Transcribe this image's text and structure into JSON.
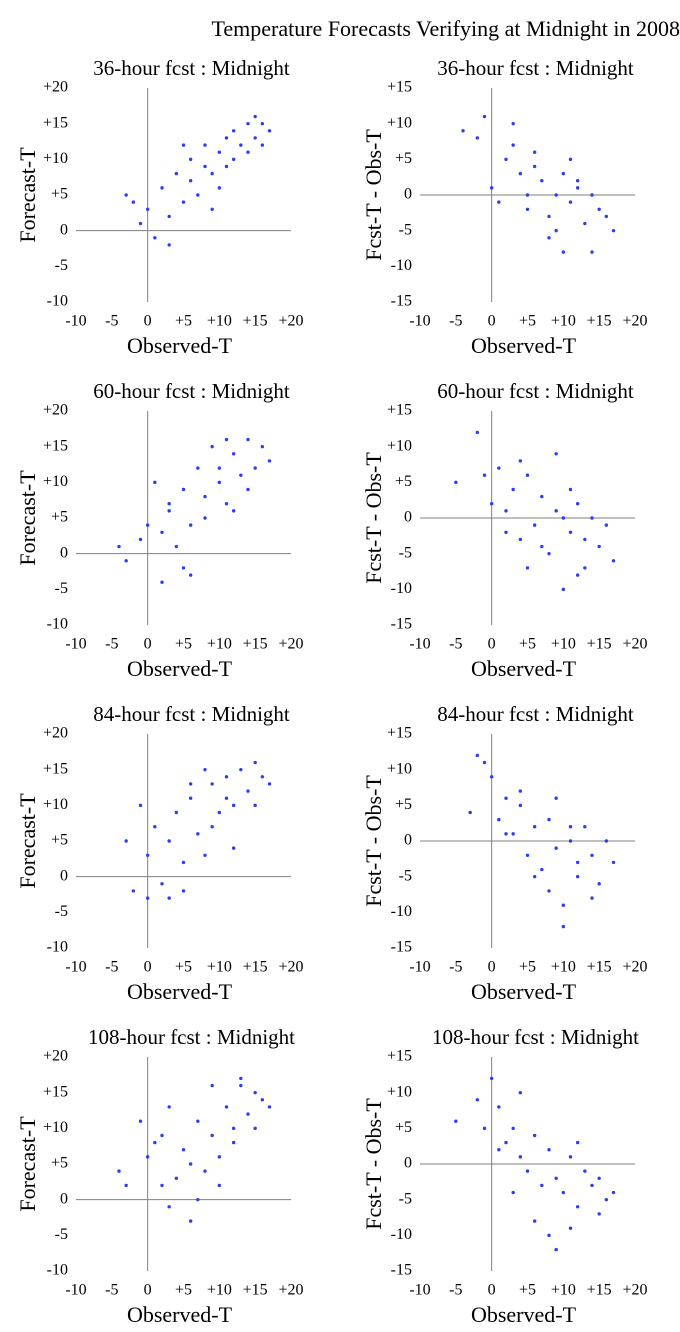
{
  "title": "Temperature Forecasts Verifying at Midnight in 2008",
  "chart_data": [
    {
      "type": "scatter",
      "title": "36-hour fcst : Midnight",
      "x_label": "Observed-T",
      "y_label": "Forecast-T",
      "color": "#2b3cf5",
      "xlim": [
        -10,
        20
      ],
      "xticks": [
        -10,
        -5,
        0,
        {
          "value": 5,
          "label": "+5"
        },
        {
          "value": 10,
          "label": "+10"
        },
        {
          "value": 15,
          "label": "+15"
        },
        {
          "value": 20,
          "label": "+20"
        }
      ],
      "ylim": [
        -10,
        20
      ],
      "yticks": [
        -10,
        -5,
        0,
        {
          "value": 5,
          "label": "+5"
        },
        {
          "value": 10,
          "label": "+10"
        },
        {
          "value": 15,
          "label": "+15"
        },
        {
          "value": 20,
          "label": "+20"
        }
      ],
      "x": [
        -3,
        -2,
        -1,
        0,
        1,
        2,
        3,
        4,
        5,
        6,
        6,
        7,
        8,
        8,
        9,
        10,
        10,
        11,
        12,
        12,
        13,
        14,
        14,
        15,
        15,
        16,
        16,
        17,
        3,
        9,
        11,
        5
      ],
      "values": [
        5,
        4,
        1,
        3,
        -1,
        6,
        2,
        8,
        4,
        10,
        7,
        5,
        9,
        12,
        8,
        11,
        6,
        13,
        10,
        14,
        12,
        11,
        15,
        13,
        16,
        12,
        15,
        14,
        -2,
        3,
        9,
        12
      ]
    },
    {
      "type": "scatter",
      "title": "36-hour fcst : Midnight",
      "x_label": "Observed-T",
      "y_label": "Fcst-T - Obs-T",
      "color": "#2b3cf5",
      "xlim": [
        -10,
        20
      ],
      "xticks": [
        -10,
        -5,
        0,
        {
          "value": 5,
          "label": "+5"
        },
        {
          "value": 10,
          "label": "+10"
        },
        {
          "value": 15,
          "label": "+15"
        },
        {
          "value": 20,
          "label": "+20"
        }
      ],
      "ylim": [
        -15,
        15
      ],
      "yticks": [
        -15,
        -10,
        -5,
        0,
        {
          "value": 5,
          "label": "+5"
        },
        {
          "value": 10,
          "label": "+10"
        },
        {
          "value": 15,
          "label": "+15"
        }
      ],
      "x": [
        -4,
        -2,
        -1,
        0,
        1,
        2,
        3,
        4,
        5,
        6,
        7,
        8,
        9,
        10,
        10,
        11,
        12,
        13,
        14,
        15,
        16,
        17,
        3,
        6,
        9,
        12,
        8,
        5,
        14,
        11
      ],
      "values": [
        9,
        8,
        11,
        1,
        -1,
        5,
        10,
        3,
        -2,
        6,
        2,
        -3,
        0,
        -8,
        3,
        -1,
        1,
        -4,
        0,
        -2,
        -3,
        -5,
        7,
        4,
        -5,
        2,
        -6,
        0,
        -8,
        5
      ]
    },
    {
      "type": "scatter",
      "title": "60-hour fcst : Midnight",
      "x_label": "Observed-T",
      "y_label": "Forecast-T",
      "color": "#2b3cf5",
      "xlim": [
        -10,
        20
      ],
      "xticks": [
        -10,
        -5,
        0,
        {
          "value": 5,
          "label": "+5"
        },
        {
          "value": 10,
          "label": "+10"
        },
        {
          "value": 15,
          "label": "+15"
        },
        {
          "value": 20,
          "label": "+20"
        }
      ],
      "ylim": [
        -10,
        20
      ],
      "yticks": [
        -10,
        -5,
        0,
        {
          "value": 5,
          "label": "+5"
        },
        {
          "value": 10,
          "label": "+10"
        },
        {
          "value": 15,
          "label": "+15"
        },
        {
          "value": 20,
          "label": "+20"
        }
      ],
      "x": [
        -4,
        -3,
        -1,
        0,
        1,
        2,
        3,
        4,
        5,
        6,
        7,
        8,
        9,
        10,
        11,
        12,
        13,
        14,
        15,
        16,
        17,
        2,
        5,
        8,
        11,
        14,
        6,
        10,
        3,
        12
      ],
      "values": [
        1,
        -1,
        2,
        4,
        10,
        3,
        6,
        1,
        9,
        4,
        12,
        8,
        15,
        10,
        7,
        14,
        11,
        16,
        12,
        15,
        13,
        -4,
        -2,
        5,
        16,
        9,
        -3,
        12,
        7,
        6
      ]
    },
    {
      "type": "scatter",
      "title": "60-hour fcst : Midnight",
      "x_label": "Observed-T",
      "y_label": "Fcst-T - Obs-T",
      "color": "#2b3cf5",
      "xlim": [
        -10,
        20
      ],
      "xticks": [
        -10,
        -5,
        0,
        {
          "value": 5,
          "label": "+5"
        },
        {
          "value": 10,
          "label": "+10"
        },
        {
          "value": 15,
          "label": "+15"
        },
        {
          "value": 20,
          "label": "+20"
        }
      ],
      "ylim": [
        -15,
        15
      ],
      "yticks": [
        -15,
        -10,
        -5,
        0,
        {
          "value": 5,
          "label": "+5"
        },
        {
          "value": 10,
          "label": "+10"
        },
        {
          "value": 15,
          "label": "+15"
        }
      ],
      "x": [
        -5,
        -2,
        -1,
        0,
        1,
        2,
        3,
        4,
        5,
        6,
        7,
        8,
        9,
        10,
        11,
        12,
        13,
        14,
        15,
        16,
        17,
        4,
        7,
        10,
        13,
        2,
        9,
        12,
        5,
        11
      ],
      "values": [
        5,
        12,
        6,
        2,
        7,
        1,
        4,
        -3,
        6,
        -1,
        3,
        -5,
        1,
        -10,
        -2,
        2,
        -7,
        0,
        -4,
        -1,
        -6,
        8,
        -4,
        0,
        -3,
        -2,
        9,
        -8,
        -7,
        4
      ]
    },
    {
      "type": "scatter",
      "title": "84-hour fcst : Midnight",
      "x_label": "Observed-T",
      "y_label": "Forecast-T",
      "color": "#2b3cf5",
      "xlim": [
        -10,
        20
      ],
      "xticks": [
        -10,
        -5,
        0,
        {
          "value": 5,
          "label": "+5"
        },
        {
          "value": 10,
          "label": "+10"
        },
        {
          "value": 15,
          "label": "+15"
        },
        {
          "value": 20,
          "label": "+20"
        }
      ],
      "ylim": [
        -10,
        20
      ],
      "yticks": [
        -10,
        -5,
        0,
        {
          "value": 5,
          "label": "+5"
        },
        {
          "value": 10,
          "label": "+10"
        },
        {
          "value": 15,
          "label": "+15"
        },
        {
          "value": 20,
          "label": "+20"
        }
      ],
      "x": [
        -3,
        -2,
        -1,
        0,
        1,
        2,
        3,
        4,
        5,
        6,
        7,
        8,
        9,
        10,
        11,
        12,
        13,
        14,
        15,
        16,
        17,
        3,
        6,
        9,
        12,
        0,
        15,
        8,
        5,
        11
      ],
      "values": [
        5,
        -2,
        10,
        3,
        7,
        -1,
        5,
        9,
        2,
        11,
        6,
        3,
        13,
        9,
        14,
        10,
        15,
        12,
        16,
        14,
        13,
        -3,
        13,
        7,
        4,
        -3,
        10,
        15,
        -2,
        11
      ]
    },
    {
      "type": "scatter",
      "title": "84-hour fcst : Midnight",
      "x_label": "Observed-T",
      "y_label": "Fcst-T - Obs-T",
      "color": "#2b3cf5",
      "xlim": [
        -10,
        20
      ],
      "xticks": [
        -10,
        -5,
        0,
        {
          "value": 5,
          "label": "+5"
        },
        {
          "value": 10,
          "label": "+10"
        },
        {
          "value": 15,
          "label": "+15"
        },
        {
          "value": 20,
          "label": "+20"
        }
      ],
      "ylim": [
        -15,
        15
      ],
      "yticks": [
        -15,
        -10,
        -5,
        0,
        {
          "value": 5,
          "label": "+5"
        },
        {
          "value": 10,
          "label": "+10"
        },
        {
          "value": 15,
          "label": "+15"
        }
      ],
      "x": [
        -3,
        -2,
        -1,
        0,
        1,
        2,
        3,
        4,
        5,
        6,
        7,
        8,
        9,
        10,
        11,
        12,
        13,
        14,
        15,
        16,
        17,
        4,
        8,
        10,
        12,
        6,
        2,
        9,
        14,
        11
      ],
      "values": [
        4,
        12,
        11,
        9,
        3,
        6,
        1,
        5,
        -2,
        2,
        -4,
        3,
        -1,
        -9,
        0,
        -5,
        2,
        -2,
        -6,
        0,
        -3,
        7,
        -7,
        -12,
        -3,
        -5,
        1,
        6,
        -8,
        2
      ]
    },
    {
      "type": "scatter",
      "title": "108-hour fcst : Midnight",
      "x_label": "Observed-T",
      "y_label": "Forecast-T",
      "color": "#2b3cf5",
      "xlim": [
        -10,
        20
      ],
      "xticks": [
        -10,
        -5,
        0,
        {
          "value": 5,
          "label": "+5"
        },
        {
          "value": 10,
          "label": "+10"
        },
        {
          "value": 15,
          "label": "+15"
        },
        {
          "value": 20,
          "label": "+20"
        }
      ],
      "ylim": [
        -10,
        20
      ],
      "yticks": [
        -10,
        -5,
        0,
        {
          "value": 5,
          "label": "+5"
        },
        {
          "value": 10,
          "label": "+10"
        },
        {
          "value": 15,
          "label": "+15"
        },
        {
          "value": 20,
          "label": "+20"
        }
      ],
      "x": [
        -4,
        -3,
        -1,
        0,
        1,
        2,
        3,
        4,
        5,
        6,
        7,
        8,
        9,
        10,
        11,
        12,
        13,
        14,
        15,
        16,
        17,
        3,
        6,
        9,
        12,
        15,
        7,
        10,
        2,
        13
      ],
      "values": [
        4,
        2,
        11,
        6,
        8,
        2,
        13,
        3,
        7,
        5,
        11,
        4,
        9,
        6,
        13,
        10,
        16,
        12,
        15,
        14,
        13,
        -1,
        -3,
        16,
        8,
        10,
        0,
        2,
        9,
        17
      ]
    },
    {
      "type": "scatter",
      "title": "108-hour fcst : Midnight",
      "x_label": "Observed-T",
      "y_label": "Fcst-T - Obs-T",
      "color": "#2b3cf5",
      "xlim": [
        -10,
        20
      ],
      "xticks": [
        -10,
        -5,
        0,
        {
          "value": 5,
          "label": "+5"
        },
        {
          "value": 10,
          "label": "+10"
        },
        {
          "value": 15,
          "label": "+15"
        },
        {
          "value": 20,
          "label": "+20"
        }
      ],
      "ylim": [
        -15,
        15
      ],
      "yticks": [
        -15,
        -10,
        -5,
        0,
        {
          "value": 5,
          "label": "+5"
        },
        {
          "value": 10,
          "label": "+10"
        },
        {
          "value": 15,
          "label": "+15"
        }
      ],
      "x": [
        -5,
        -2,
        -1,
        0,
        1,
        2,
        3,
        4,
        5,
        6,
        7,
        8,
        9,
        10,
        11,
        12,
        13,
        14,
        15,
        16,
        17,
        3,
        6,
        9,
        12,
        15,
        8,
        4,
        11,
        1
      ],
      "values": [
        6,
        9,
        5,
        12,
        8,
        3,
        5,
        1,
        -1,
        4,
        -3,
        2,
        -2,
        -4,
        1,
        -6,
        -1,
        -3,
        -2,
        -5,
        -4,
        -4,
        -8,
        -12,
        3,
        -7,
        -10,
        10,
        -9,
        2
      ]
    }
  ]
}
